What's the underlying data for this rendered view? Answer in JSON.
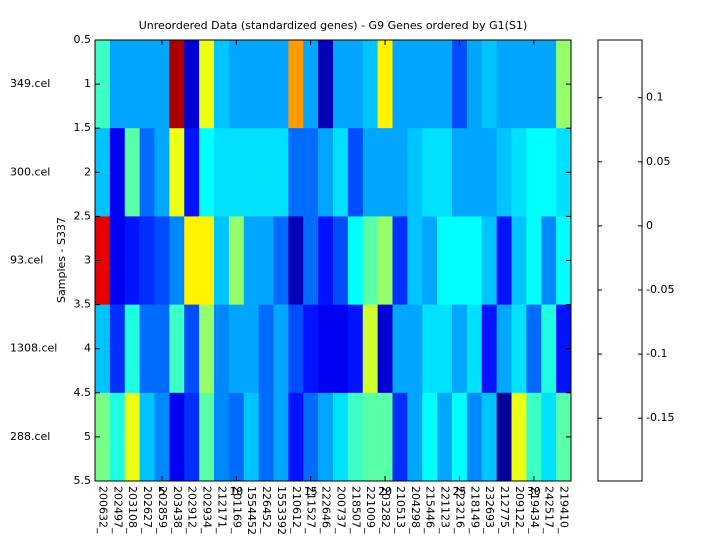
{
  "chart_data": {
    "type": "heatmap",
    "title": "Unreordered Data (standardized genes) - G9 Genes ordered by G1(S1)",
    "ylabel": "Samples - S337",
    "colormap": "jet",
    "categories": [
      "200632_",
      "202497_",
      "203108_",
      "202627_",
      "202859_",
      "203438_",
      "202912_",
      "202934_",
      "212171_",
      "201169_",
      "1554452",
      "226452_",
      "1553392",
      "210612_",
      "211527_",
      "222646_",
      "200737_",
      "218507_",
      "221009_",
      "203282_",
      "210513_",
      "204298_",
      "215446_",
      "221123_",
      "223216_",
      "218149_",
      "232693_",
      "212775_",
      "209122_",
      "219434_",
      "242517_",
      "219410_"
    ],
    "rows": [
      "349.cel",
      "300.cel",
      "93.cel",
      "1308.cel",
      "288.cel"
    ],
    "values": [
      [
        -0.05,
        -0.1,
        -0.1,
        -0.1,
        -0.1,
        0.13,
        -0.17,
        0.01,
        -0.09,
        -0.1,
        -0.1,
        -0.1,
        -0.1,
        0.05,
        -0.1,
        -0.18,
        -0.1,
        -0.1,
        -0.09,
        0.02,
        -0.1,
        -0.1,
        -0.1,
        -0.1,
        -0.13,
        -0.1,
        -0.09,
        -0.1,
        -0.1,
        -0.1,
        -0.1,
        -0.02
      ],
      [
        -0.09,
        -0.16,
        -0.04,
        -0.12,
        -0.1,
        0.01,
        -0.15,
        -0.07,
        -0.08,
        -0.08,
        -0.08,
        -0.08,
        -0.08,
        -0.12,
        -0.12,
        -0.1,
        -0.08,
        -0.13,
        -0.1,
        -0.1,
        -0.1,
        -0.09,
        -0.08,
        -0.08,
        -0.1,
        -0.1,
        -0.1,
        -0.09,
        -0.08,
        -0.07,
        -0.07,
        -0.08
      ],
      [
        0.11,
        -0.16,
        -0.15,
        -0.14,
        -0.13,
        -0.11,
        0.02,
        0.02,
        -0.09,
        -0.02,
        -0.1,
        -0.1,
        -0.12,
        -0.18,
        -0.12,
        -0.15,
        -0.13,
        -0.07,
        -0.04,
        -0.02,
        -0.14,
        -0.09,
        -0.1,
        -0.07,
        -0.07,
        -0.07,
        -0.09,
        -0.15,
        -0.09,
        -0.07,
        -0.11,
        -0.07
      ],
      [
        -0.09,
        -0.14,
        -0.06,
        -0.12,
        -0.12,
        -0.05,
        -0.13,
        -0.02,
        -0.11,
        -0.1,
        -0.1,
        -0.12,
        -0.1,
        -0.13,
        -0.15,
        -0.16,
        -0.16,
        -0.15,
        0.0,
        -0.17,
        -0.1,
        -0.1,
        -0.08,
        -0.08,
        -0.1,
        -0.08,
        -0.15,
        -0.1,
        -0.08,
        -0.12,
        -0.06,
        -0.15
      ],
      [
        -0.03,
        -0.06,
        0.01,
        -0.09,
        -0.11,
        -0.16,
        -0.14,
        -0.04,
        -0.11,
        -0.12,
        -0.09,
        -0.12,
        -0.1,
        -0.15,
        -0.12,
        -0.1,
        -0.08,
        -0.05,
        -0.04,
        -0.04,
        -0.14,
        -0.1,
        -0.07,
        -0.1,
        -0.07,
        -0.11,
        -0.09,
        -0.19,
        0.01,
        -0.05,
        -0.08,
        -0.04
      ]
    ],
    "xlim": [
      0.5,
      32.5
    ],
    "xticks": [
      5,
      10,
      15,
      20,
      25,
      30
    ],
    "ylim": [
      0.5,
      5.5
    ],
    "yticks": [
      0.5,
      1,
      1.5,
      2,
      2.5,
      3,
      3.5,
      4,
      4.5,
      5,
      5.5
    ],
    "y_reversed": true,
    "clim": [
      -0.199,
      0.145
    ],
    "cticks": [
      -0.15,
      -0.1,
      -0.05,
      0,
      0.05,
      0.1
    ]
  }
}
